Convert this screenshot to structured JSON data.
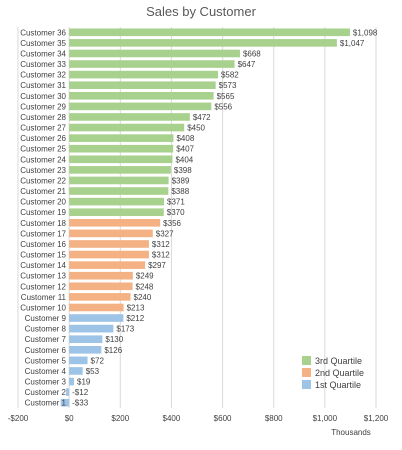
{
  "chart_data": {
    "type": "bar",
    "orientation": "horizontal",
    "title": "Sales by Customer",
    "xlabel": "Thousands",
    "ylabel": "",
    "xlim": [
      -200,
      1200
    ],
    "xticks": [
      -200,
      0,
      200,
      400,
      600,
      800,
      1000,
      1200
    ],
    "xtick_labels": [
      "-$200",
      "$0",
      "$200",
      "$400",
      "$600",
      "$800",
      "$1,000",
      "$1,200"
    ],
    "grid": true,
    "legend_position": "bottom-right",
    "series": [
      {
        "name": "3rd Quartile",
        "color": "#a9d18e"
      },
      {
        "name": "2nd Quartile",
        "color": "#f4b183"
      },
      {
        "name": "1st Quartile",
        "color": "#9dc3e6"
      }
    ],
    "legend_order": [
      0,
      1,
      2
    ],
    "bars": [
      {
        "category": "Customer 36",
        "value": 1098,
        "label": "$1,098",
        "series": 0
      },
      {
        "category": "Customer 35",
        "value": 1047,
        "label": "$1,047",
        "series": 0
      },
      {
        "category": "Customer 34",
        "value": 668,
        "label": "$668",
        "series": 0
      },
      {
        "category": "Customer 33",
        "value": 647,
        "label": "$647",
        "series": 0
      },
      {
        "category": "Customer 32",
        "value": 582,
        "label": "$582",
        "series": 0
      },
      {
        "category": "Customer 31",
        "value": 573,
        "label": "$573",
        "series": 0
      },
      {
        "category": "Customer 30",
        "value": 565,
        "label": "$565",
        "series": 0
      },
      {
        "category": "Customer 29",
        "value": 556,
        "label": "$556",
        "series": 0
      },
      {
        "category": "Customer 28",
        "value": 472,
        "label": "$472",
        "series": 0
      },
      {
        "category": "Customer 27",
        "value": 450,
        "label": "$450",
        "series": 0
      },
      {
        "category": "Customer 26",
        "value": 408,
        "label": "$408",
        "series": 0
      },
      {
        "category": "Customer 25",
        "value": 407,
        "label": "$407",
        "series": 0
      },
      {
        "category": "Customer 24",
        "value": 404,
        "label": "$404",
        "series": 0
      },
      {
        "category": "Customer 23",
        "value": 398,
        "label": "$398",
        "series": 0
      },
      {
        "category": "Customer 22",
        "value": 389,
        "label": "$389",
        "series": 0
      },
      {
        "category": "Customer 21",
        "value": 388,
        "label": "$388",
        "series": 0
      },
      {
        "category": "Customer 20",
        "value": 371,
        "label": "$371",
        "series": 0
      },
      {
        "category": "Customer 19",
        "value": 370,
        "label": "$370",
        "series": 0
      },
      {
        "category": "Customer 18",
        "value": 356,
        "label": "$356",
        "series": 1
      },
      {
        "category": "Customer 17",
        "value": 327,
        "label": "$327",
        "series": 1
      },
      {
        "category": "Customer 16",
        "value": 312,
        "label": "$312",
        "series": 1
      },
      {
        "category": "Customer 15",
        "value": 312,
        "label": "$312",
        "series": 1
      },
      {
        "category": "Customer 14",
        "value": 297,
        "label": "$297",
        "series": 1
      },
      {
        "category": "Customer 13",
        "value": 249,
        "label": "$249",
        "series": 1
      },
      {
        "category": "Customer 12",
        "value": 248,
        "label": "$248",
        "series": 1
      },
      {
        "category": "Customer 11",
        "value": 240,
        "label": "$240",
        "series": 1
      },
      {
        "category": "Customer 10",
        "value": 213,
        "label": "$213",
        "series": 1
      },
      {
        "category": "Customer 9",
        "value": 212,
        "label": "$212",
        "series": 2
      },
      {
        "category": "Customer 8",
        "value": 173,
        "label": "$173",
        "series": 2
      },
      {
        "category": "Customer 7",
        "value": 130,
        "label": "$130",
        "series": 2
      },
      {
        "category": "Customer 6",
        "value": 126,
        "label": "$126",
        "series": 2
      },
      {
        "category": "Customer 5",
        "value": 72,
        "label": "$72",
        "series": 2
      },
      {
        "category": "Customer 4",
        "value": 53,
        "label": "$53",
        "series": 2
      },
      {
        "category": "Customer 3",
        "value": 19,
        "label": "$19",
        "series": 2
      },
      {
        "category": "Customer 2",
        "value": -12,
        "label": "-$12",
        "series": 2
      },
      {
        "category": "Customer 1",
        "value": -33,
        "label": "-$33",
        "series": 2
      }
    ]
  }
}
